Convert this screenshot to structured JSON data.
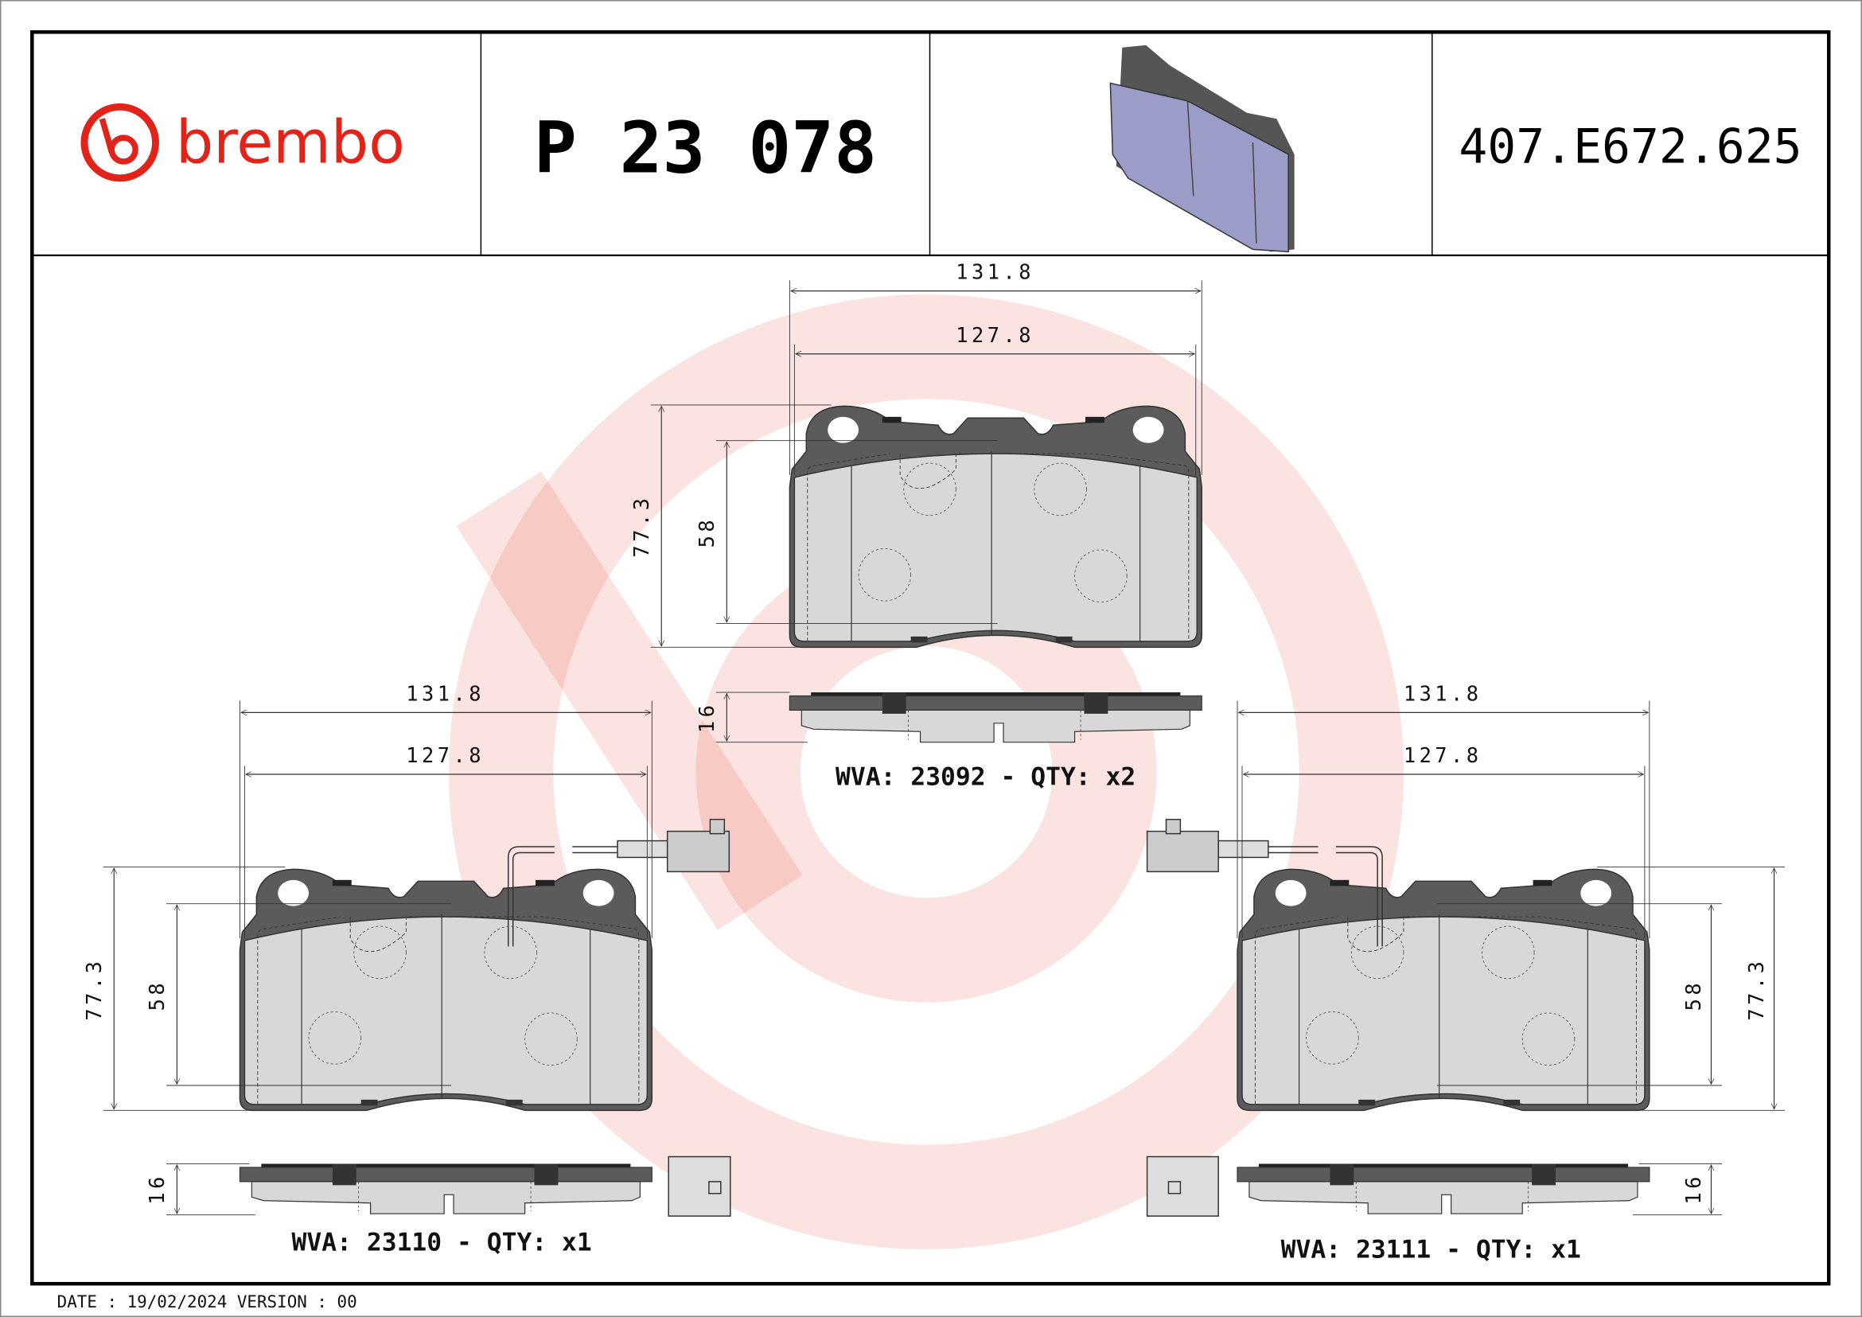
{
  "header": {
    "brand_logo_text": "brembo",
    "part_number": "P 23 078",
    "reference_code": "407.E672.625",
    "brand_color": "#e2231a",
    "product_image": "brake-pad-3d-render"
  },
  "drawings": {
    "top_pad": {
      "width_outer": "131.8",
      "width_inner": "127.8",
      "height_outer": "77.3",
      "height_inner": "58",
      "thickness": "16",
      "label": "WVA: 23092 - QTY: x2"
    },
    "left_pad": {
      "width_outer": "131.8",
      "width_inner": "127.8",
      "height_outer": "77.3",
      "height_inner": "58",
      "thickness": "16",
      "label": "WVA: 23110 - QTY: x1"
    },
    "right_pad": {
      "width_outer": "131.8",
      "width_inner": "127.8",
      "height_outer": "77.3",
      "height_inner": "58",
      "thickness": "16",
      "label": "WVA: 23111 - QTY: x1"
    }
  },
  "footer": {
    "date_version": "DATE : 19/02/2024 VERSION : 00"
  },
  "watermark": {
    "color": "#e2231a"
  }
}
